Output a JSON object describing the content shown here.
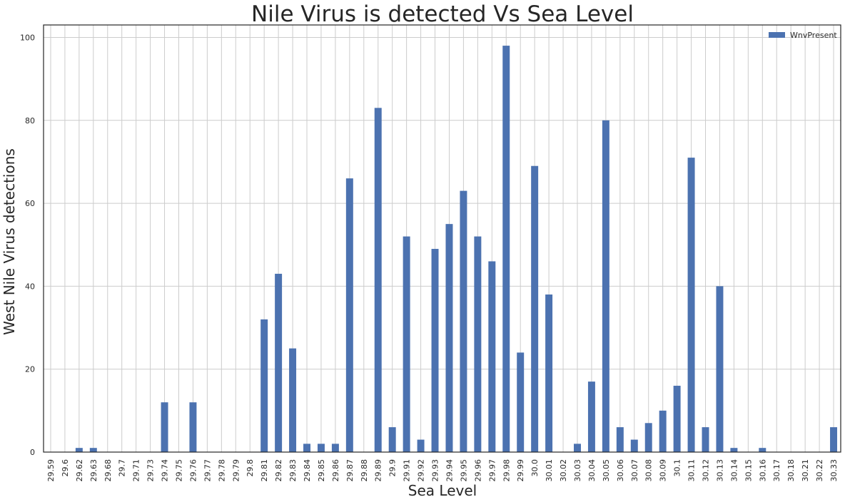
{
  "chart_data": {
    "type": "bar",
    "title": "Nile Virus is detected Vs Sea Level",
    "xlabel": "Sea Level",
    "ylabel": "West Nile Virus detections",
    "ylim": [
      0,
      103
    ],
    "yticks": [
      "0",
      "20",
      "40",
      "60",
      "80",
      "100"
    ],
    "grid": true,
    "legend_position": "top-right",
    "colors": {
      "bar": "#4c72b0",
      "grid": "#cccccc",
      "frame": "#262626"
    },
    "categories": [
      "29.59",
      "29.6",
      "29.62",
      "29.63",
      "29.68",
      "29.7",
      "29.71",
      "29.73",
      "29.74",
      "29.75",
      "29.76",
      "29.77",
      "29.78",
      "29.79",
      "29.8",
      "29.81",
      "29.82",
      "29.83",
      "29.84",
      "29.85",
      "29.86",
      "29.87",
      "29.88",
      "29.89",
      "29.9",
      "29.91",
      "29.92",
      "29.93",
      "29.94",
      "29.95",
      "29.96",
      "29.97",
      "29.98",
      "29.99",
      "30.0",
      "30.01",
      "30.02",
      "30.03",
      "30.04",
      "30.05",
      "30.06",
      "30.07",
      "30.08",
      "30.09",
      "30.1",
      "30.11",
      "30.12",
      "30.13",
      "30.14",
      "30.15",
      "30.16",
      "30.17",
      "30.18",
      "30.21",
      "30.22",
      "30.33"
    ],
    "series": [
      {
        "name": "WnvPresent",
        "values": [
          0,
          0,
          1,
          1,
          0,
          0,
          0,
          0,
          12,
          0,
          12,
          0,
          0,
          0,
          0,
          32,
          43,
          25,
          2,
          2,
          2,
          66,
          0,
          83,
          6,
          52,
          3,
          49,
          55,
          63,
          52,
          46,
          98,
          24,
          69,
          38,
          0,
          2,
          17,
          80,
          6,
          3,
          7,
          10,
          16,
          71,
          6,
          40,
          1,
          0,
          1,
          0,
          0,
          0,
          0,
          6
        ]
      }
    ]
  }
}
